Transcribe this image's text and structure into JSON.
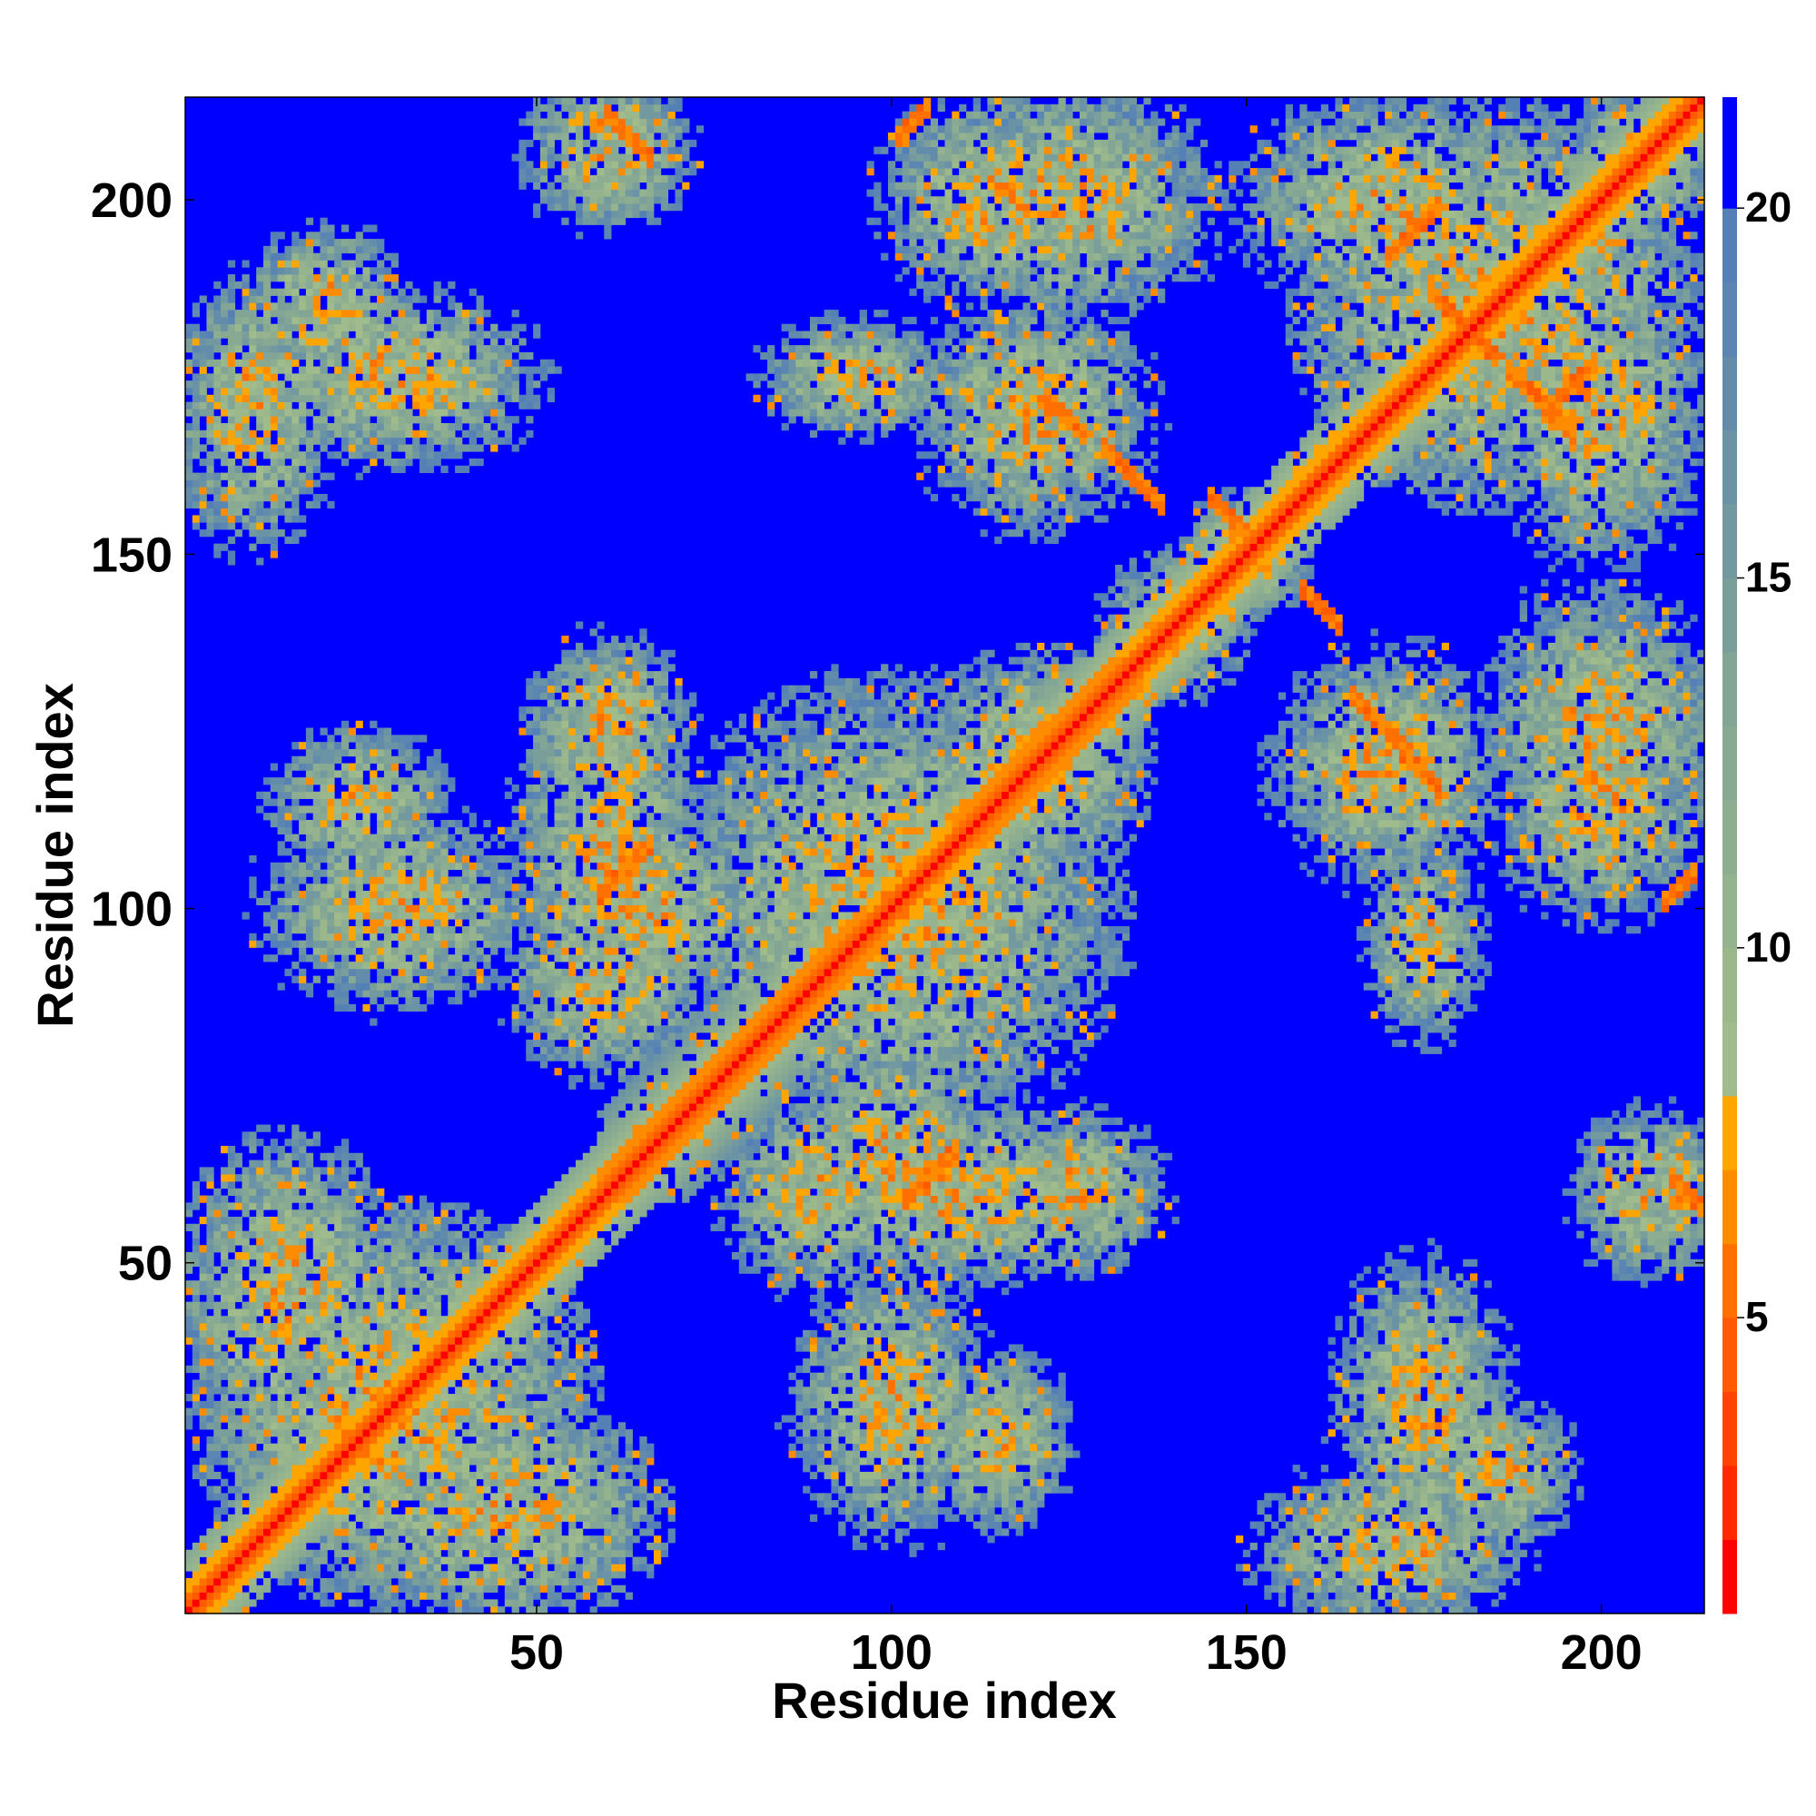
{
  "chart_data": {
    "type": "heatmap",
    "title": "",
    "xlabel": "Residue index",
    "ylabel": "Residue index",
    "n_residues": 214,
    "xlim": [
      1,
      214
    ],
    "ylim": [
      1,
      214
    ],
    "x_ticks": [
      {
        "value": 50,
        "label": "50"
      },
      {
        "value": 100,
        "label": "100"
      },
      {
        "value": 150,
        "label": "150"
      },
      {
        "value": 200,
        "label": "200"
      }
    ],
    "y_ticks": [
      {
        "value": 50,
        "label": "50"
      },
      {
        "value": 100,
        "label": "100"
      },
      {
        "value": 150,
        "label": "150"
      },
      {
        "value": 200,
        "label": "200"
      }
    ],
    "colorbar": {
      "range": [
        1,
        21.5
      ],
      "ticks": [
        {
          "value": 5,
          "label": "5"
        },
        {
          "value": 10,
          "label": "10"
        },
        {
          "value": 15,
          "label": "15"
        },
        {
          "value": 20,
          "label": "20"
        }
      ],
      "color_bands": [
        {
          "from": 1,
          "to": 2,
          "color": "#ff0000"
        },
        {
          "from": 2,
          "to": 3,
          "color": "#ff2a00"
        },
        {
          "from": 3,
          "to": 4,
          "color": "#ff4400"
        },
        {
          "from": 4,
          "to": 5,
          "color": "#ff5a00"
        },
        {
          "from": 5,
          "to": 6,
          "color": "#ff7000"
        },
        {
          "from": 6,
          "to": 7,
          "color": "#ff8c00"
        },
        {
          "from": 7,
          "to": 8,
          "color": "#ffa500"
        },
        {
          "from": 8,
          "to": 9,
          "color": "#a0bc8c"
        },
        {
          "from": 9,
          "to": 10,
          "color": "#9ab88c"
        },
        {
          "from": 10,
          "to": 11,
          "color": "#95b38e"
        },
        {
          "from": 11,
          "to": 12,
          "color": "#8eae91"
        },
        {
          "from": 12,
          "to": 13,
          "color": "#88aa92"
        },
        {
          "from": 13,
          "to": 14,
          "color": "#82a595"
        },
        {
          "from": 14,
          "to": 15,
          "color": "#7a9f9b"
        },
        {
          "from": 15,
          "to": 16,
          "color": "#7399a0"
        },
        {
          "from": 16,
          "to": 17,
          "color": "#6b93a6"
        },
        {
          "from": 17,
          "to": 18,
          "color": "#638cab"
        },
        {
          "from": 18,
          "to": 19,
          "color": "#5b86b1"
        },
        {
          "from": 19,
          "to": 20,
          "color": "#5480b6"
        },
        {
          "from": 20,
          "to": 21.5,
          "color": "#0000ff"
        }
      ]
    },
    "matrix_description": "Symmetric residue-residue distance map (values capped at 20, shown blue). Red/orange main diagonal (distance ~3.8). Off-diagonal contact patches include: anti-diagonal strand pairings near (60-67, 203-212), (102-110, 59-67), (165-175, 120-130), (170-190, 165-195), (210-214, 60-67), (208-214, 100-107); helical segments along the diagonal near 60-100 and 110-135 (wide light band); dense contact blocks near residues 1-60 x 1-60, 60-135 x 90-130, 160-214 x 160-214."
  }
}
